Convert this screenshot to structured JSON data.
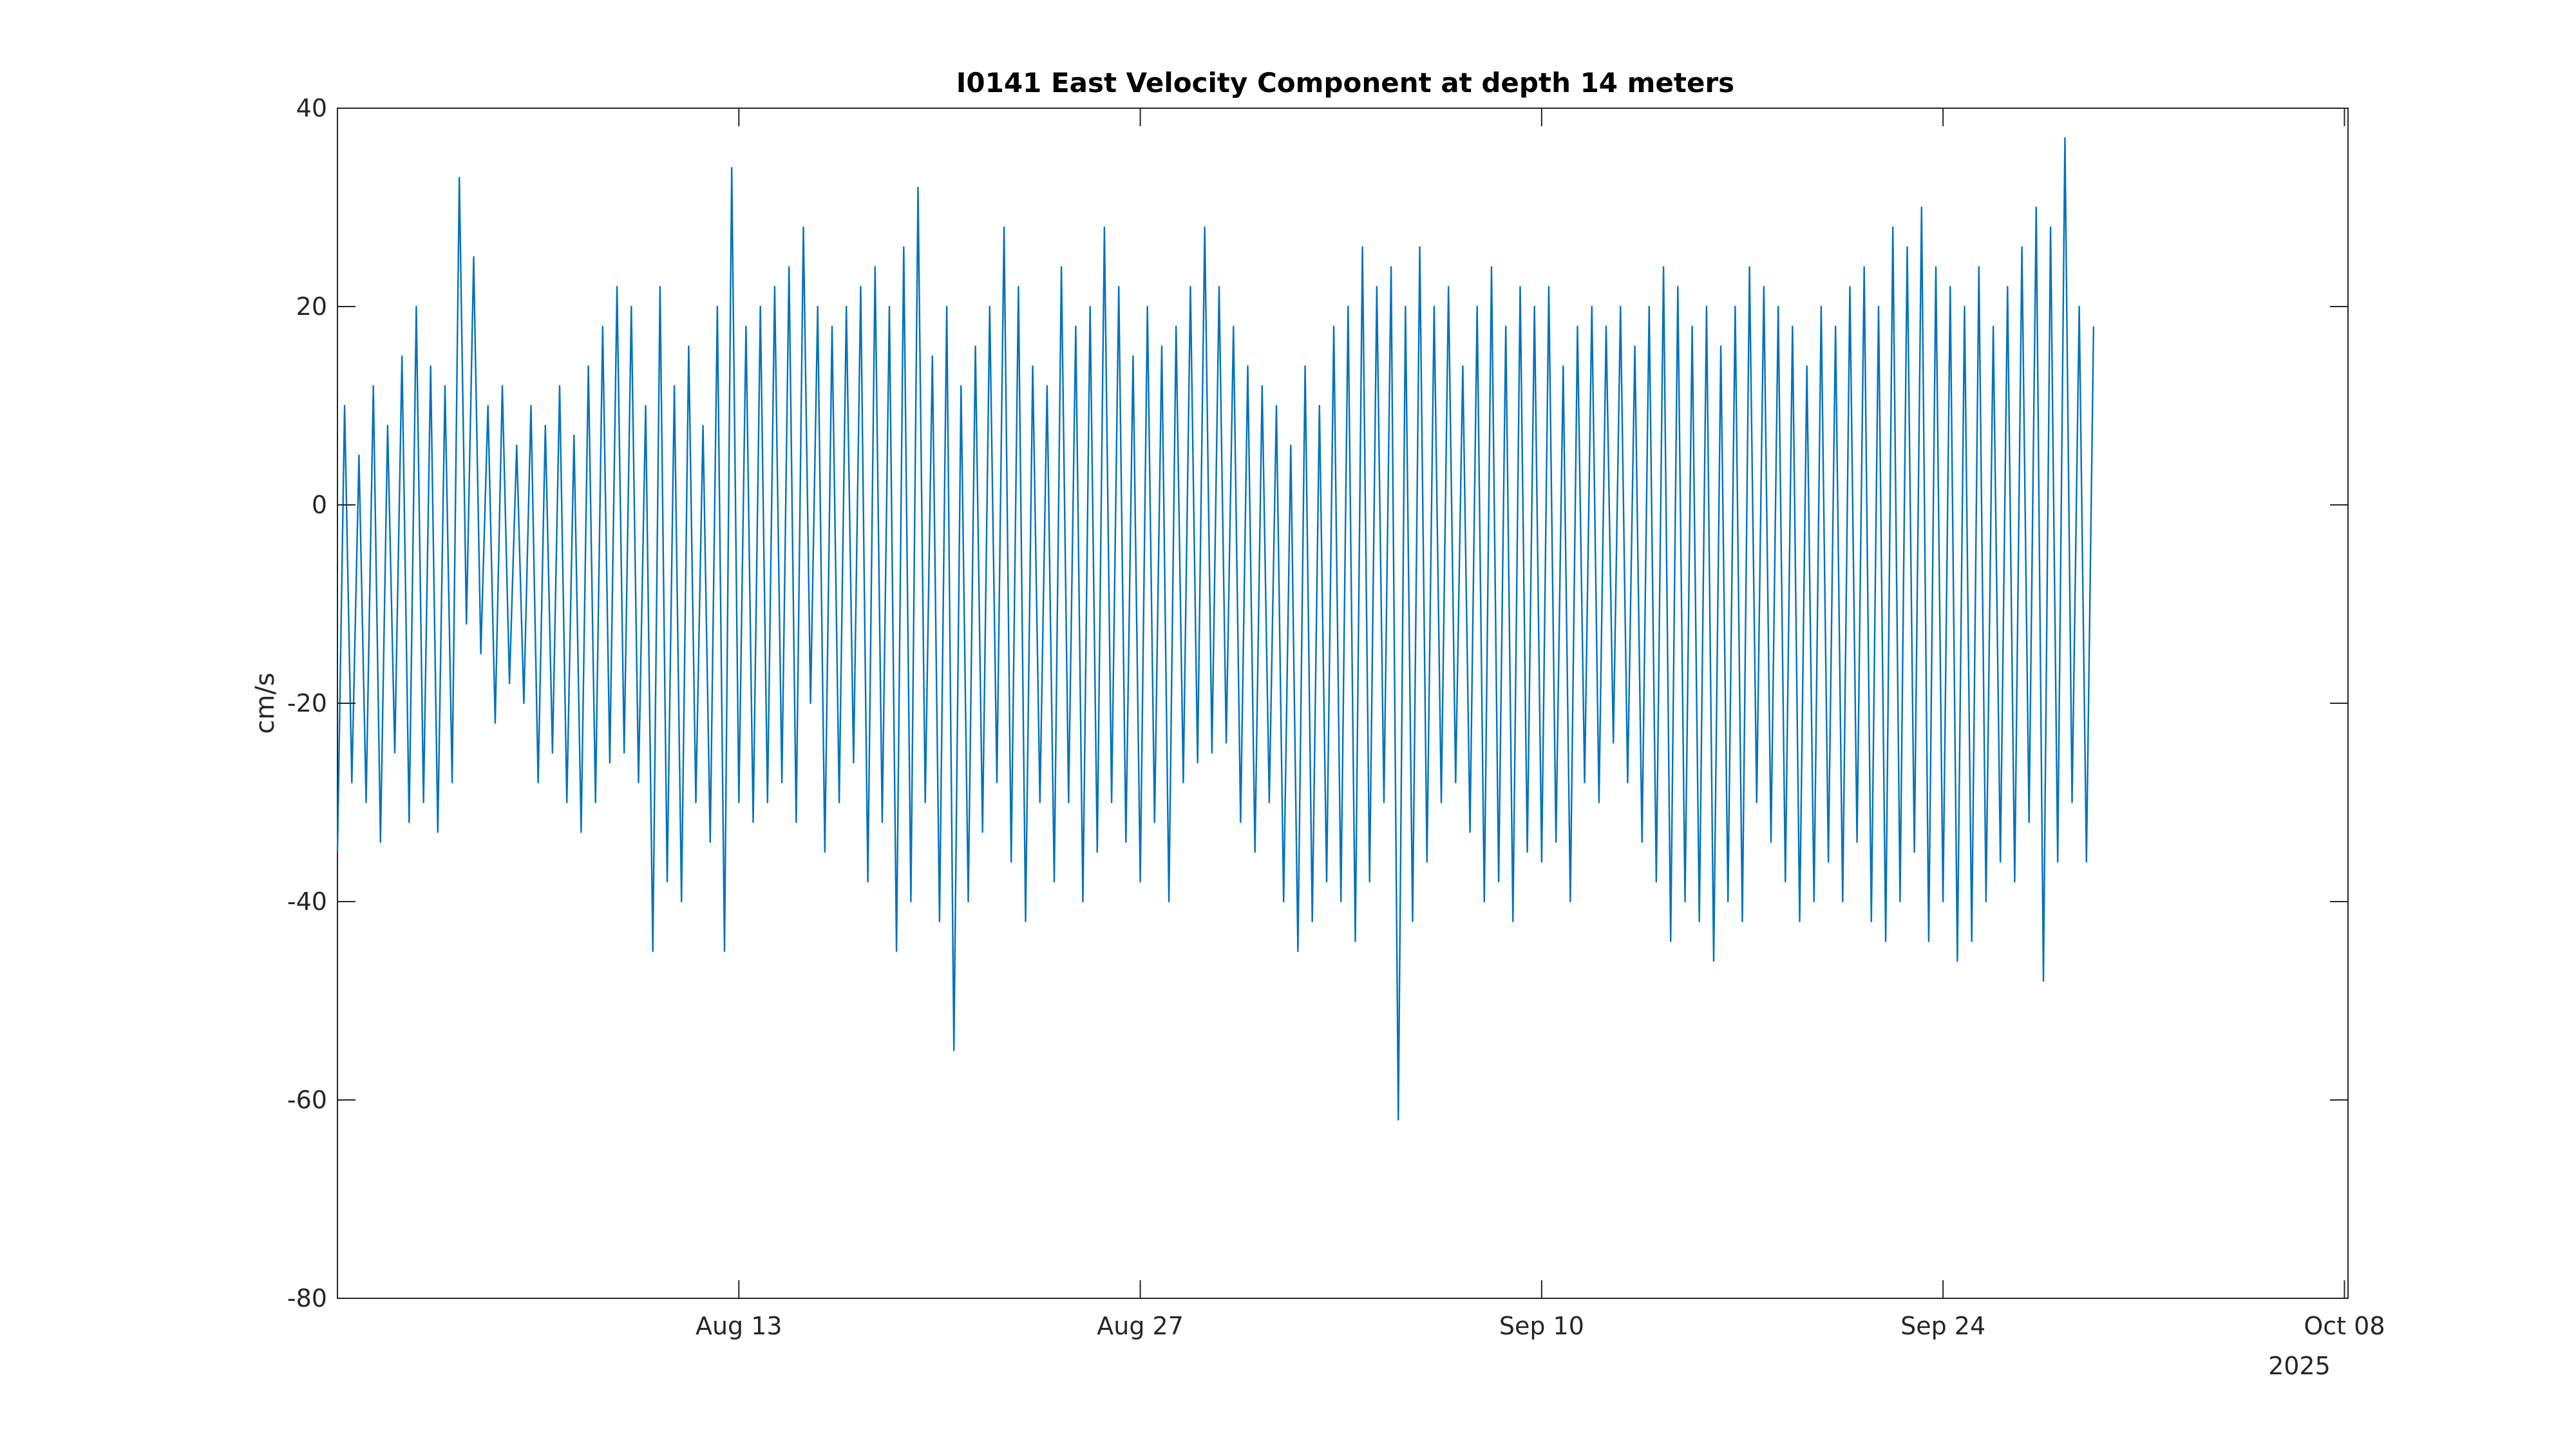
{
  "chart_data": {
    "type": "line",
    "title": "I0141 East Velocity Component at depth 14 meters",
    "xlabel": "",
    "ylabel": "cm/s",
    "x_tick_labels": [
      "Aug 13",
      "Aug 27",
      "Sep 10",
      "Sep 24",
      "Oct 08"
    ],
    "x_tick_dates": [
      "2025-08-13",
      "2025-08-27",
      "2025-09-10",
      "2025-09-24",
      "2025-10-08"
    ],
    "x_year_label": "2025",
    "xlim": [
      "2025-07-30T00:00",
      "2025-10-08T03:00"
    ],
    "ylim": [
      -80,
      40
    ],
    "y_ticks": [
      -80,
      -60,
      -40,
      -20,
      0,
      20,
      40
    ],
    "y_tick_labels": [
      "-80",
      "-60",
      "-40",
      "-20",
      "0",
      "20",
      "40"
    ],
    "grid": false,
    "box": true,
    "colors": {
      "series": "#0072BD",
      "axes": "#262626"
    },
    "series": [
      {
        "x_start": "2025-07-30T00:00",
        "x_step_hours": 6,
        "values": [
          -35,
          10,
          -28,
          5,
          -30,
          12,
          -34,
          8,
          -25,
          15,
          -32,
          20,
          -30,
          14,
          -33,
          12,
          -28,
          33,
          -12,
          25,
          -15,
          10,
          -22,
          12,
          -18,
          6,
          -20,
          10,
          -28,
          8,
          -25,
          12,
          -30,
          7,
          -33,
          14,
          -30,
          18,
          -26,
          22,
          -25,
          20,
          -28,
          10,
          -45,
          22,
          -38,
          12,
          -40,
          16,
          -30,
          8,
          -34,
          20,
          -45,
          34,
          -30,
          18,
          -32,
          20,
          -30,
          22,
          -28,
          24,
          -32,
          28,
          -20,
          20,
          -35,
          18,
          -30,
          20,
          -26,
          22,
          -38,
          24,
          -32,
          20,
          -45,
          26,
          -40,
          32,
          -30,
          15,
          -42,
          20,
          -55,
          12,
          -40,
          16,
          -33,
          20,
          -28,
          28,
          -36,
          22,
          -42,
          14,
          -30,
          12,
          -38,
          24,
          -30,
          18,
          -40,
          20,
          -35,
          28,
          -30,
          22,
          -34,
          15,
          -38,
          20,
          -32,
          16,
          -40,
          18,
          -28,
          22,
          -26,
          28,
          -25,
          22,
          -24,
          18,
          -32,
          14,
          -35,
          12,
          -30,
          10,
          -40,
          6,
          -45,
          14,
          -42,
          10,
          -38,
          18,
          -40,
          20,
          -44,
          26,
          -38,
          22,
          -30,
          24,
          -62,
          20,
          -42,
          26,
          -36,
          20,
          -30,
          22,
          -28,
          14,
          -33,
          20,
          -40,
          24,
          -38,
          18,
          -42,
          22,
          -35,
          20,
          -36,
          22,
          -34,
          14,
          -40,
          18,
          -28,
          20,
          -30,
          18,
          -24,
          20,
          -28,
          16,
          -34,
          20,
          -38,
          24,
          -44,
          22,
          -40,
          18,
          -42,
          20,
          -46,
          16,
          -40,
          20,
          -42,
          24,
          -30,
          22,
          -34,
          20,
          -38,
          18,
          -42,
          14,
          -40,
          20,
          -36,
          18,
          -40,
          22,
          -34,
          24,
          -42,
          20,
          -44,
          28,
          -40,
          26,
          -35,
          30,
          -44,
          24,
          -40,
          22,
          -46,
          20,
          -44,
          24,
          -40,
          18,
          -36,
          22,
          -38,
          26,
          -32,
          30,
          -48,
          28,
          -36,
          37,
          -30,
          20,
          -36,
          18
        ]
      }
    ]
  }
}
